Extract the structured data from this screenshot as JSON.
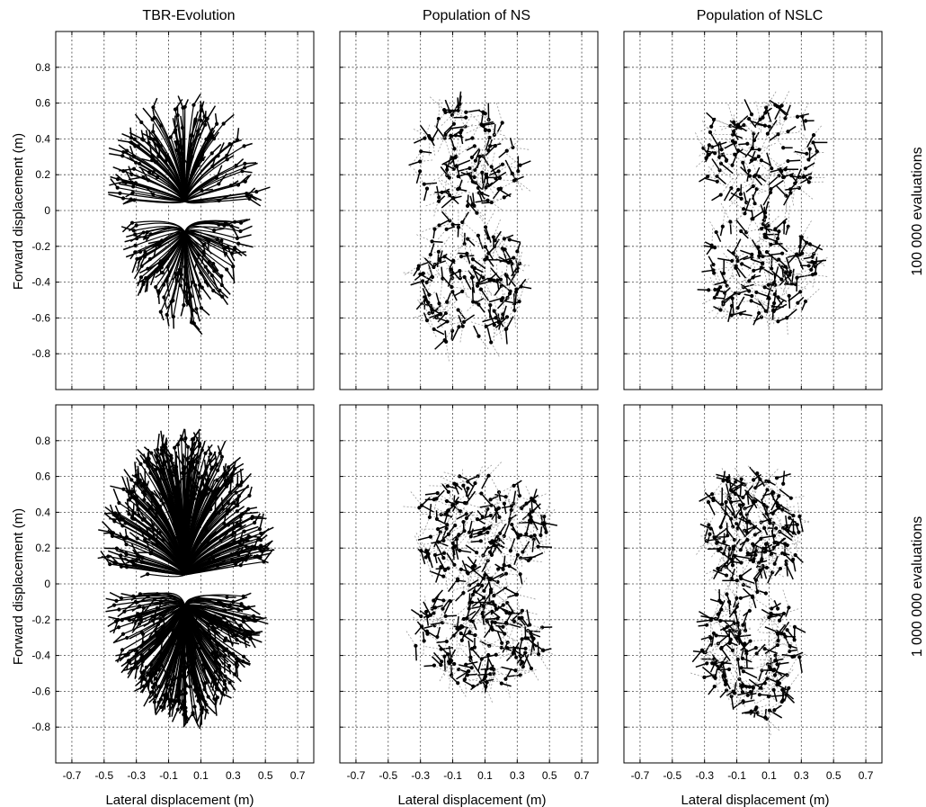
{
  "chart_data": {
    "type": "scatter",
    "columns": [
      "TBR-Evolution",
      "Population of NS",
      "Population of NSLC"
    ],
    "rows": [
      "100 000 evaluations",
      "1 000 000 evaluations"
    ],
    "xlabel": "Lateral displacement (m)",
    "ylabel": "Forward displacement (m)",
    "xlim": [
      -0.8,
      0.8
    ],
    "ylim": [
      -1.0,
      1.0
    ],
    "x_ticks": [
      "-0.7",
      "-0.5",
      "-0.3",
      "-0.1",
      "0.1",
      "0.3",
      "0.5",
      "0.7"
    ],
    "y_ticks": [
      "0.8",
      "0.6",
      "0.4",
      "0.2",
      "0",
      "-0.2",
      "-0.4",
      "-0.6",
      "-0.8"
    ],
    "grid": true,
    "panels": [
      {
        "column": "TBR-Evolution",
        "row": "100 000 evaluations",
        "style": "tree",
        "extent": {
          "top": [
            -0.35,
            0.45,
            0.62
          ],
          "bottom": [
            -0.3,
            0.35,
            -0.62
          ]
        }
      },
      {
        "column": "Population of NS",
        "row": "100 000 evaluations",
        "style": "scattered",
        "extent": {
          "x": [
            -0.3,
            0.35
          ],
          "y": [
            -0.78,
            0.62
          ]
        }
      },
      {
        "column": "Population of NSLC",
        "row": "100 000 evaluations",
        "style": "scattered",
        "extent": {
          "x": [
            -0.3,
            0.42
          ],
          "y": [
            -0.65,
            0.65
          ]
        }
      },
      {
        "column": "TBR-Evolution",
        "row": "1 000 000 evaluations",
        "style": "tree",
        "extent": {
          "top": [
            -0.5,
            0.5,
            0.8
          ],
          "bottom": [
            -0.45,
            0.45,
            -0.72
          ]
        }
      },
      {
        "column": "Population of NS",
        "row": "1 000 000 evaluations",
        "style": "scattered",
        "extent": {
          "x": [
            -0.32,
            0.5
          ],
          "y": [
            -0.58,
            0.63
          ]
        }
      },
      {
        "column": "Population of NSLC",
        "row": "1 000 000 evaluations",
        "style": "scattered",
        "extent": {
          "x": [
            -0.3,
            0.32
          ],
          "y": [
            -0.78,
            0.65
          ]
        }
      }
    ]
  }
}
